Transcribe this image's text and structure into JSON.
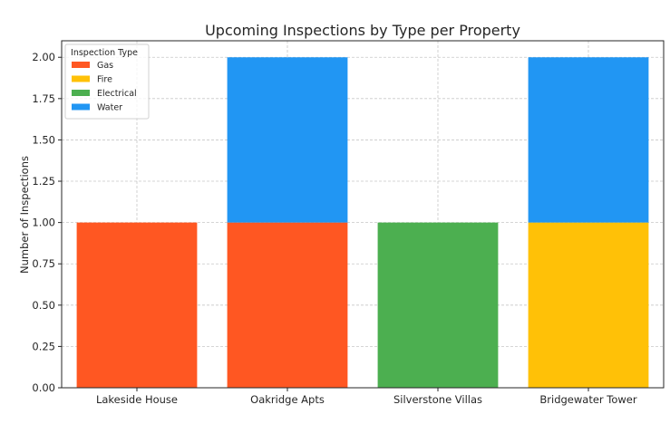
{
  "chart_data": {
    "type": "bar",
    "stacked": true,
    "title": "Upcoming Inspections by Type per Property",
    "xlabel": "",
    "ylabel": "Number of Inspections",
    "categories": [
      "Lakeside House",
      "Oakridge Apts",
      "Silverstone Villas",
      "Bridgewater Tower"
    ],
    "series": [
      {
        "name": "Gas",
        "color": "#FF5722",
        "values": [
          1,
          1,
          0,
          0
        ]
      },
      {
        "name": "Fire",
        "color": "#FFC107",
        "values": [
          0,
          0,
          0,
          1
        ]
      },
      {
        "name": "Electrical",
        "color": "#4CAF50",
        "values": [
          0,
          0,
          1,
          0
        ]
      },
      {
        "name": "Water",
        "color": "#2196F3",
        "values": [
          0,
          1,
          0,
          1
        ]
      }
    ],
    "ylim": [
      0,
      2.1
    ],
    "yticks": [
      "0.00",
      "0.25",
      "0.50",
      "0.75",
      "1.00",
      "1.25",
      "1.50",
      "1.75",
      "2.00"
    ],
    "grid": true,
    "legend": {
      "title": "Inspection Type",
      "placement": "top-left"
    }
  }
}
